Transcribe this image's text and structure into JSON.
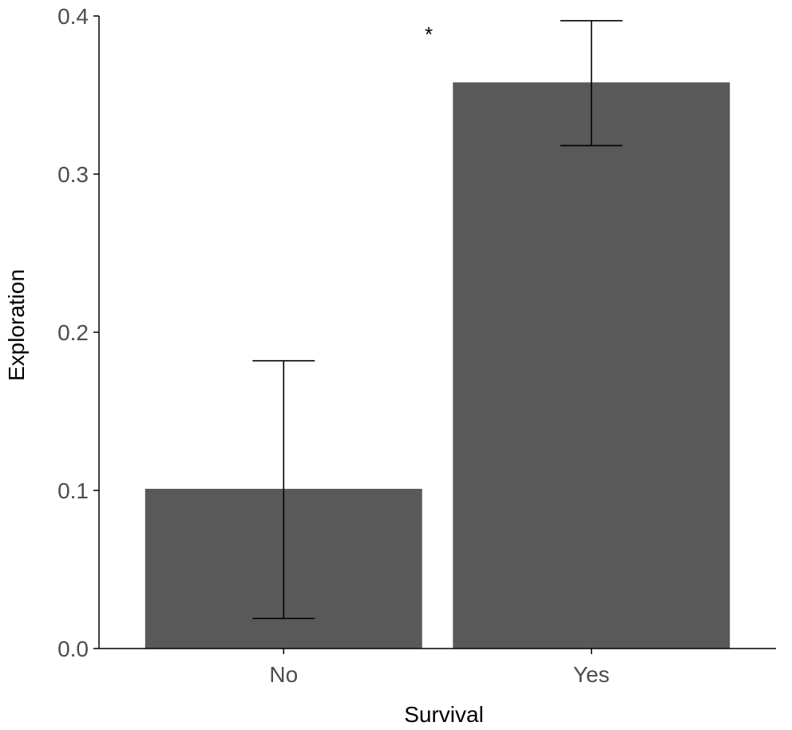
{
  "chart_data": {
    "type": "bar",
    "categories": [
      "No",
      "Yes"
    ],
    "values": [
      0.101,
      0.358
    ],
    "error_bars": [
      {
        "lower": 0.019,
        "upper": 0.182
      },
      {
        "lower": 0.318,
        "upper": 0.397
      }
    ],
    "xlabel": "Survival",
    "ylabel": "Exploration",
    "ylim": [
      0,
      0.4
    ],
    "yticks": [
      "0.0",
      "0.1",
      "0.2",
      "0.3",
      "0.4"
    ],
    "annotations": [
      "*"
    ],
    "grid": false,
    "legend": "none",
    "colors": {
      "bar": "#595959",
      "axis": "#000000",
      "tick_text": "#4d4d4d"
    }
  }
}
